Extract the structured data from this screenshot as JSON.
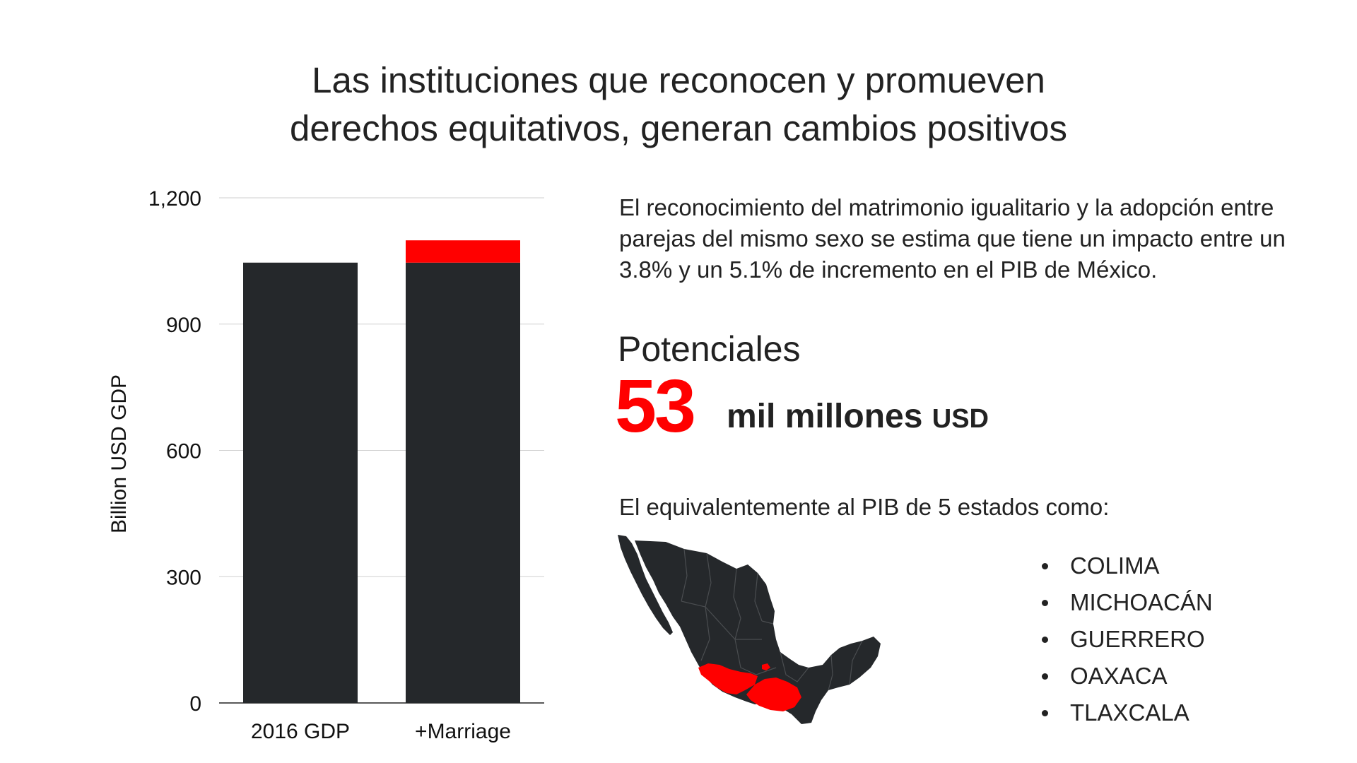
{
  "title": {
    "line1": "Las instituciones que reconocen y promueven",
    "line2": "derechos equitativos, generan cambios positivos"
  },
  "chart_data": {
    "type": "bar",
    "stacked": true,
    "categories": [
      "2016 GDP",
      "+Marriage"
    ],
    "series": [
      {
        "values": [
          1046,
          1046
        ],
        "color": "#25282b"
      },
      {
        "values": [
          0,
          53
        ],
        "color": "#ff0000"
      }
    ],
    "ylabel": "Billion USD GDP",
    "ylim": [
      0,
      1200
    ],
    "yticks": [
      0,
      300,
      600,
      900,
      1200
    ],
    "ytick_labels": [
      "0",
      "300",
      "600",
      "900",
      "1,200"
    ],
    "grid": true
  },
  "description": "El reconocimiento del matrimonio igualitario y la adopción entre parejas del mismo sexo se estima que tiene un impacto entre un 3.8% y un 5.1% de incremento en el PIB de México.",
  "potential": {
    "label": "Potenciales",
    "number": "53",
    "unit_main": "mil millones",
    "unit_currency": "USD"
  },
  "equivalent_text": "El equivalentemente al PIB de 5 estados como:",
  "states": [
    "COLIMA",
    "MICHOACÁN",
    "GUERRERO",
    "OAXACA",
    "TLAXCALA"
  ],
  "colors": {
    "accent": "#ff0000",
    "dark": "#25282b"
  }
}
